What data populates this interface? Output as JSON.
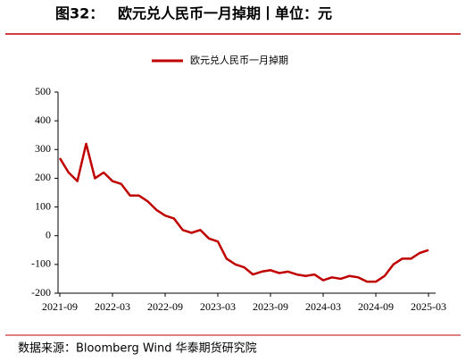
{
  "chart_data": {
    "type": "line",
    "figure_label": "图32：",
    "title": "欧元兑人民币一月掉期丨单位：元",
    "source": "数据来源：Bloomberg Wind 华泰期货研究院",
    "x": [
      "2021-09",
      "2021-10",
      "2021-11",
      "2021-12",
      "2022-01",
      "2022-02",
      "2022-03",
      "2022-04",
      "2022-05",
      "2022-06",
      "2022-07",
      "2022-08",
      "2022-09",
      "2022-10",
      "2022-11",
      "2022-12",
      "2023-01",
      "2023-02",
      "2023-03",
      "2023-04",
      "2023-05",
      "2023-06",
      "2023-07",
      "2023-08",
      "2023-09",
      "2023-10",
      "2023-11",
      "2023-12",
      "2024-01",
      "2024-02",
      "2024-03",
      "2024-04",
      "2024-05",
      "2024-06",
      "2024-07",
      "2024-08",
      "2024-09",
      "2024-10",
      "2024-11",
      "2024-12",
      "2025-01",
      "2025-02",
      "2025-03"
    ],
    "xticks": [
      "2021-09",
      "2022-03",
      "2022-09",
      "2023-03",
      "2023-09",
      "2024-03",
      "2024-09",
      "2025-03"
    ],
    "series": [
      {
        "name": "欧元兑人民币一月掉期",
        "color": "#c00000",
        "values": [
          270,
          220,
          190,
          320,
          200,
          220,
          190,
          180,
          140,
          140,
          120,
          90,
          70,
          60,
          20,
          10,
          20,
          -10,
          -20,
          -80,
          -100,
          -110,
          -135,
          -125,
          -120,
          -130,
          -125,
          -135,
          -140,
          -135,
          -155,
          -145,
          -150,
          -140,
          -145,
          -160,
          -160,
          -140,
          -100,
          -80,
          -80,
          -60,
          -50
        ]
      }
    ],
    "ylim": [
      -200,
      500
    ],
    "yticks": [
      -200,
      -100,
      0,
      100,
      200,
      300,
      400,
      500
    ]
  }
}
